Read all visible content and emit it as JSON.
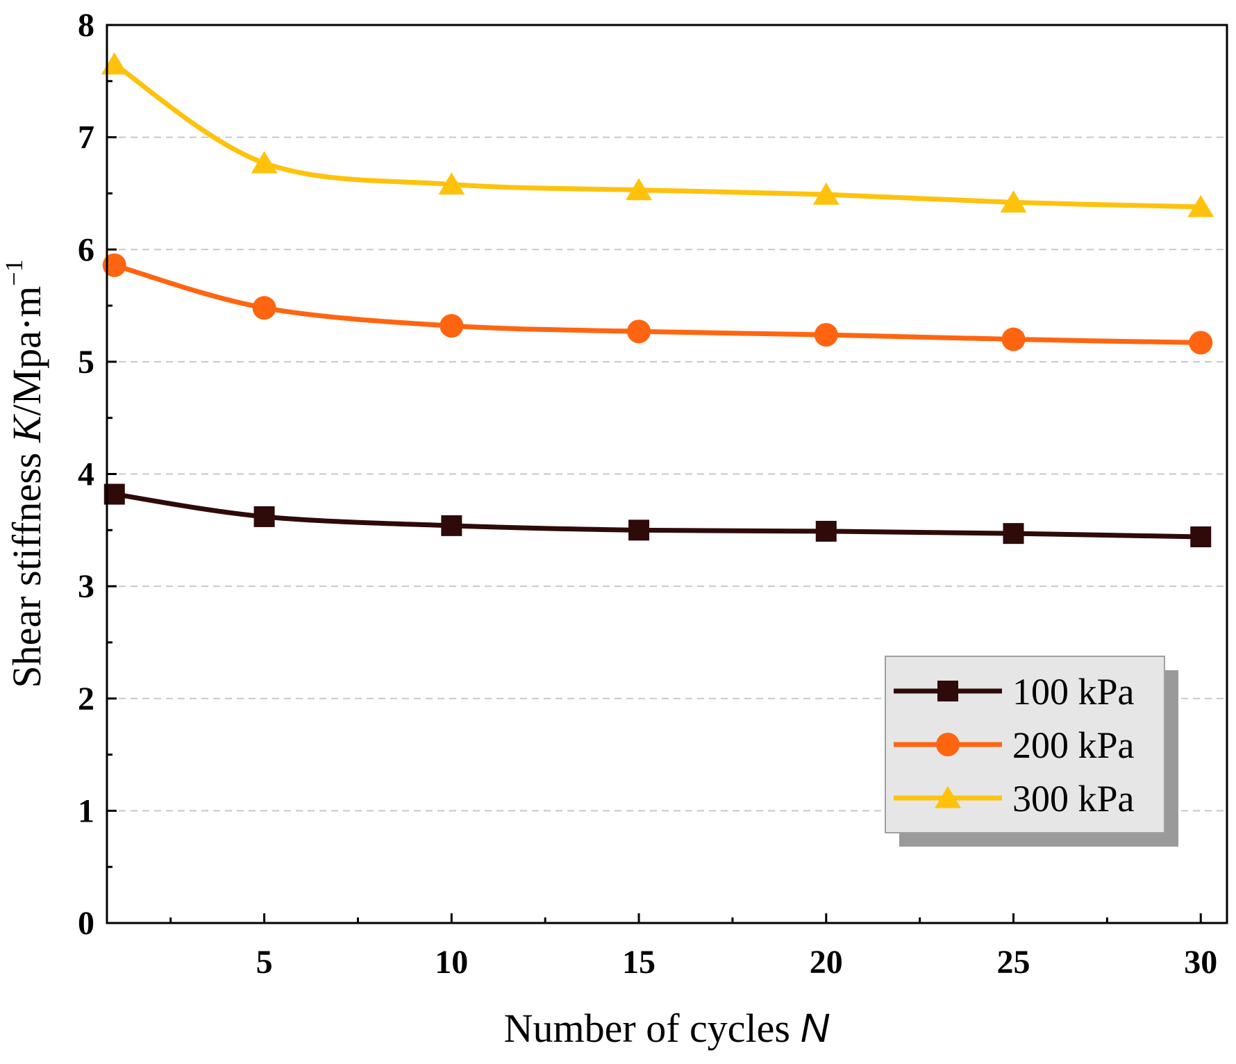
{
  "chart_data": {
    "type": "line",
    "title": "",
    "xlabel": {
      "text": "Number of cycles ",
      "var": "N"
    },
    "ylabel": {
      "text": "Shear stiffness ",
      "var": "K",
      "unit": "/Mpa·m",
      "sup": "−1"
    },
    "xlim": [
      0.8,
      30.7
    ],
    "ylim": [
      0,
      8
    ],
    "xticks": [
      5,
      10,
      15,
      20,
      25,
      30
    ],
    "yticks": [
      0,
      1,
      2,
      3,
      4,
      5,
      6,
      7,
      8
    ],
    "grid": "horizontal dashed",
    "legend_position": "bottom-right",
    "x": [
      1,
      5,
      10,
      15,
      20,
      25,
      30
    ],
    "series": [
      {
        "name": "100 kPa",
        "marker": "square",
        "color": "#2e0a08",
        "values": [
          3.82,
          3.62,
          3.54,
          3.5,
          3.49,
          3.47,
          3.44
        ]
      },
      {
        "name": "200 kPa",
        "marker": "circle",
        "color": "#ff6510",
        "values": [
          5.86,
          5.48,
          5.32,
          5.27,
          5.24,
          5.2,
          5.17
        ]
      },
      {
        "name": "300 kPa",
        "marker": "triangle",
        "color": "#ffc20c",
        "values": [
          7.65,
          6.77,
          6.58,
          6.53,
          6.49,
          6.42,
          6.38
        ]
      }
    ]
  }
}
